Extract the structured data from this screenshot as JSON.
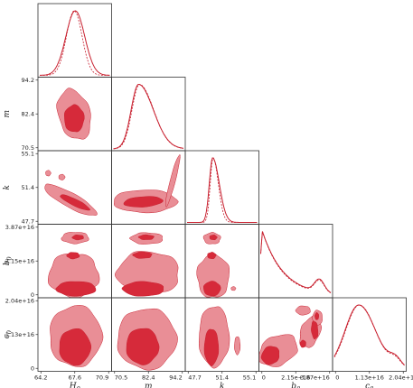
{
  "chart_data": {
    "type": "corner-plot",
    "parameters": [
      {
        "symbol": "H",
        "sub": "0",
        "ticks": [
          "64.2",
          "67.6",
          "70.9"
        ],
        "range": [
          64.2,
          70.9
        ]
      },
      {
        "symbol": "m",
        "sub": "",
        "ticks": [
          "70.5",
          "82.4",
          "94.2"
        ],
        "range": [
          70.5,
          94.2
        ]
      },
      {
        "symbol": "k",
        "sub": "",
        "ticks": [
          "47.7",
          "51.4",
          "55.1"
        ],
        "range": [
          47.7,
          55.1
        ]
      },
      {
        "symbol": "b",
        "sub": "0",
        "ticks": [
          "0",
          "2.15e+16",
          "3.87e+16"
        ],
        "range": [
          0,
          4.3e+16
        ]
      },
      {
        "symbol": "c",
        "sub": "0",
        "ticks": [
          "0",
          "1.13e+16",
          "2.04e+16"
        ],
        "range": [
          0,
          2.3e+16
        ]
      }
    ],
    "marginals": [
      {
        "param": "H0",
        "solid": {
          "mode": 67.6,
          "sigma": 0.9
        },
        "dashed": {
          "mode": 67.5,
          "sigma": 0.75
        }
      },
      {
        "param": "m",
        "solid": {
          "mode": 79.0,
          "sigma_left": 2.5,
          "sigma_right": 5.0
        },
        "dashed": {
          "mode": 79.3,
          "sigma_left": 2.5,
          "sigma_right": 4.8
        }
      },
      {
        "param": "k",
        "solid": {
          "mode": 50.4,
          "sigma_left": 0.35,
          "sigma_right": 0.7
        },
        "dashed": {
          "mode": 50.45,
          "sigma_left": 0.3,
          "sigma_right": 0.55
        }
      },
      {
        "param": "b0",
        "shape": "decaying",
        "peak_at": 1000000000000000.0,
        "shoulder_at": 3.6e+16
      },
      {
        "param": "c0",
        "shape": "skewed",
        "peak_at": 8000000000000000.0,
        "shoulder_at": 2e+16
      }
    ],
    "colors": {
      "inner": "#d62a3a",
      "outer": "#e98e96",
      "line": "#c8202f",
      "frame": "#333333"
    },
    "legend": "none",
    "grid": false
  }
}
